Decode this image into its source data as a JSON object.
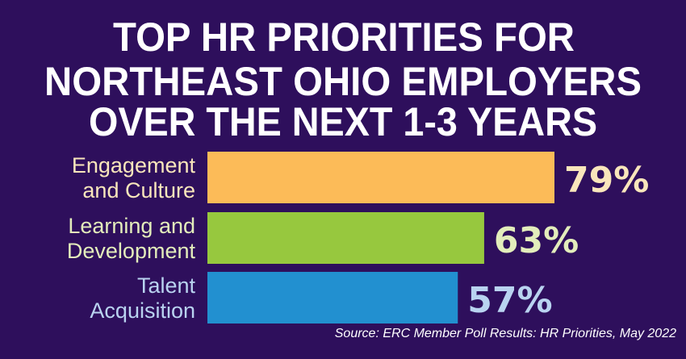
{
  "chart_data": {
    "type": "bar",
    "orientation": "horizontal",
    "title": [
      "TOP HR PRIORITIES FOR",
      "NORTHEAST OHIO EMPLOYERS",
      "OVER THE NEXT 1-3 YEARS"
    ],
    "categories": [
      [
        "Engagement",
        "and Culture"
      ],
      [
        "Learning and",
        "Development"
      ],
      [
        "Talent",
        "Acquisition"
      ]
    ],
    "values": [
      79,
      63,
      57
    ],
    "value_labels": [
      "79%",
      "63%",
      "57%"
    ],
    "bar_colors": [
      "#fcbb58",
      "#97c83e",
      "#2290d0"
    ],
    "label_colors": [
      "#f9e6bb",
      "#e3edbb",
      "#b9d3f0"
    ],
    "background": "#2e0f5c",
    "grid": false,
    "source": "Source: ERC Member Poll Results: HR Priorities, May 2022"
  }
}
